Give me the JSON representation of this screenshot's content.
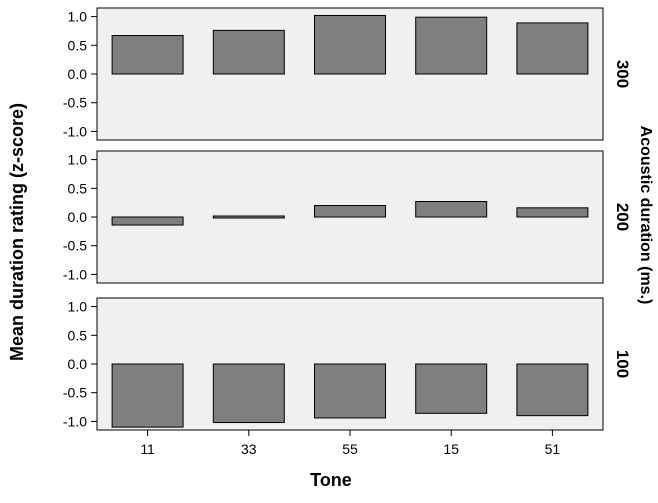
{
  "chart_data": {
    "type": "bar",
    "xlabel": "Tone",
    "ylabel": "Mean duration rating (z-score)",
    "facet_label": "Acoustic duration (ms.)",
    "categories": [
      "11",
      "33",
      "55",
      "15",
      "51"
    ],
    "ylim": [
      -1.15,
      1.15
    ],
    "yticks": [
      "1.0",
      "0.5",
      "0.0",
      "-0.5",
      "-1.0"
    ],
    "grid": false,
    "colors": {
      "bar": "#7f7f82",
      "panel_bg": "#f0f0f0",
      "border": "#000000"
    },
    "panels": [
      {
        "name": "300",
        "values": [
          0.67,
          0.76,
          1.02,
          0.99,
          0.89
        ]
      },
      {
        "name": "200",
        "values": [
          -0.14,
          0.02,
          0.2,
          0.27,
          0.16
        ]
      },
      {
        "name": "100",
        "values": [
          -1.1,
          -1.02,
          -0.94,
          -0.86,
          -0.9
        ]
      }
    ]
  }
}
